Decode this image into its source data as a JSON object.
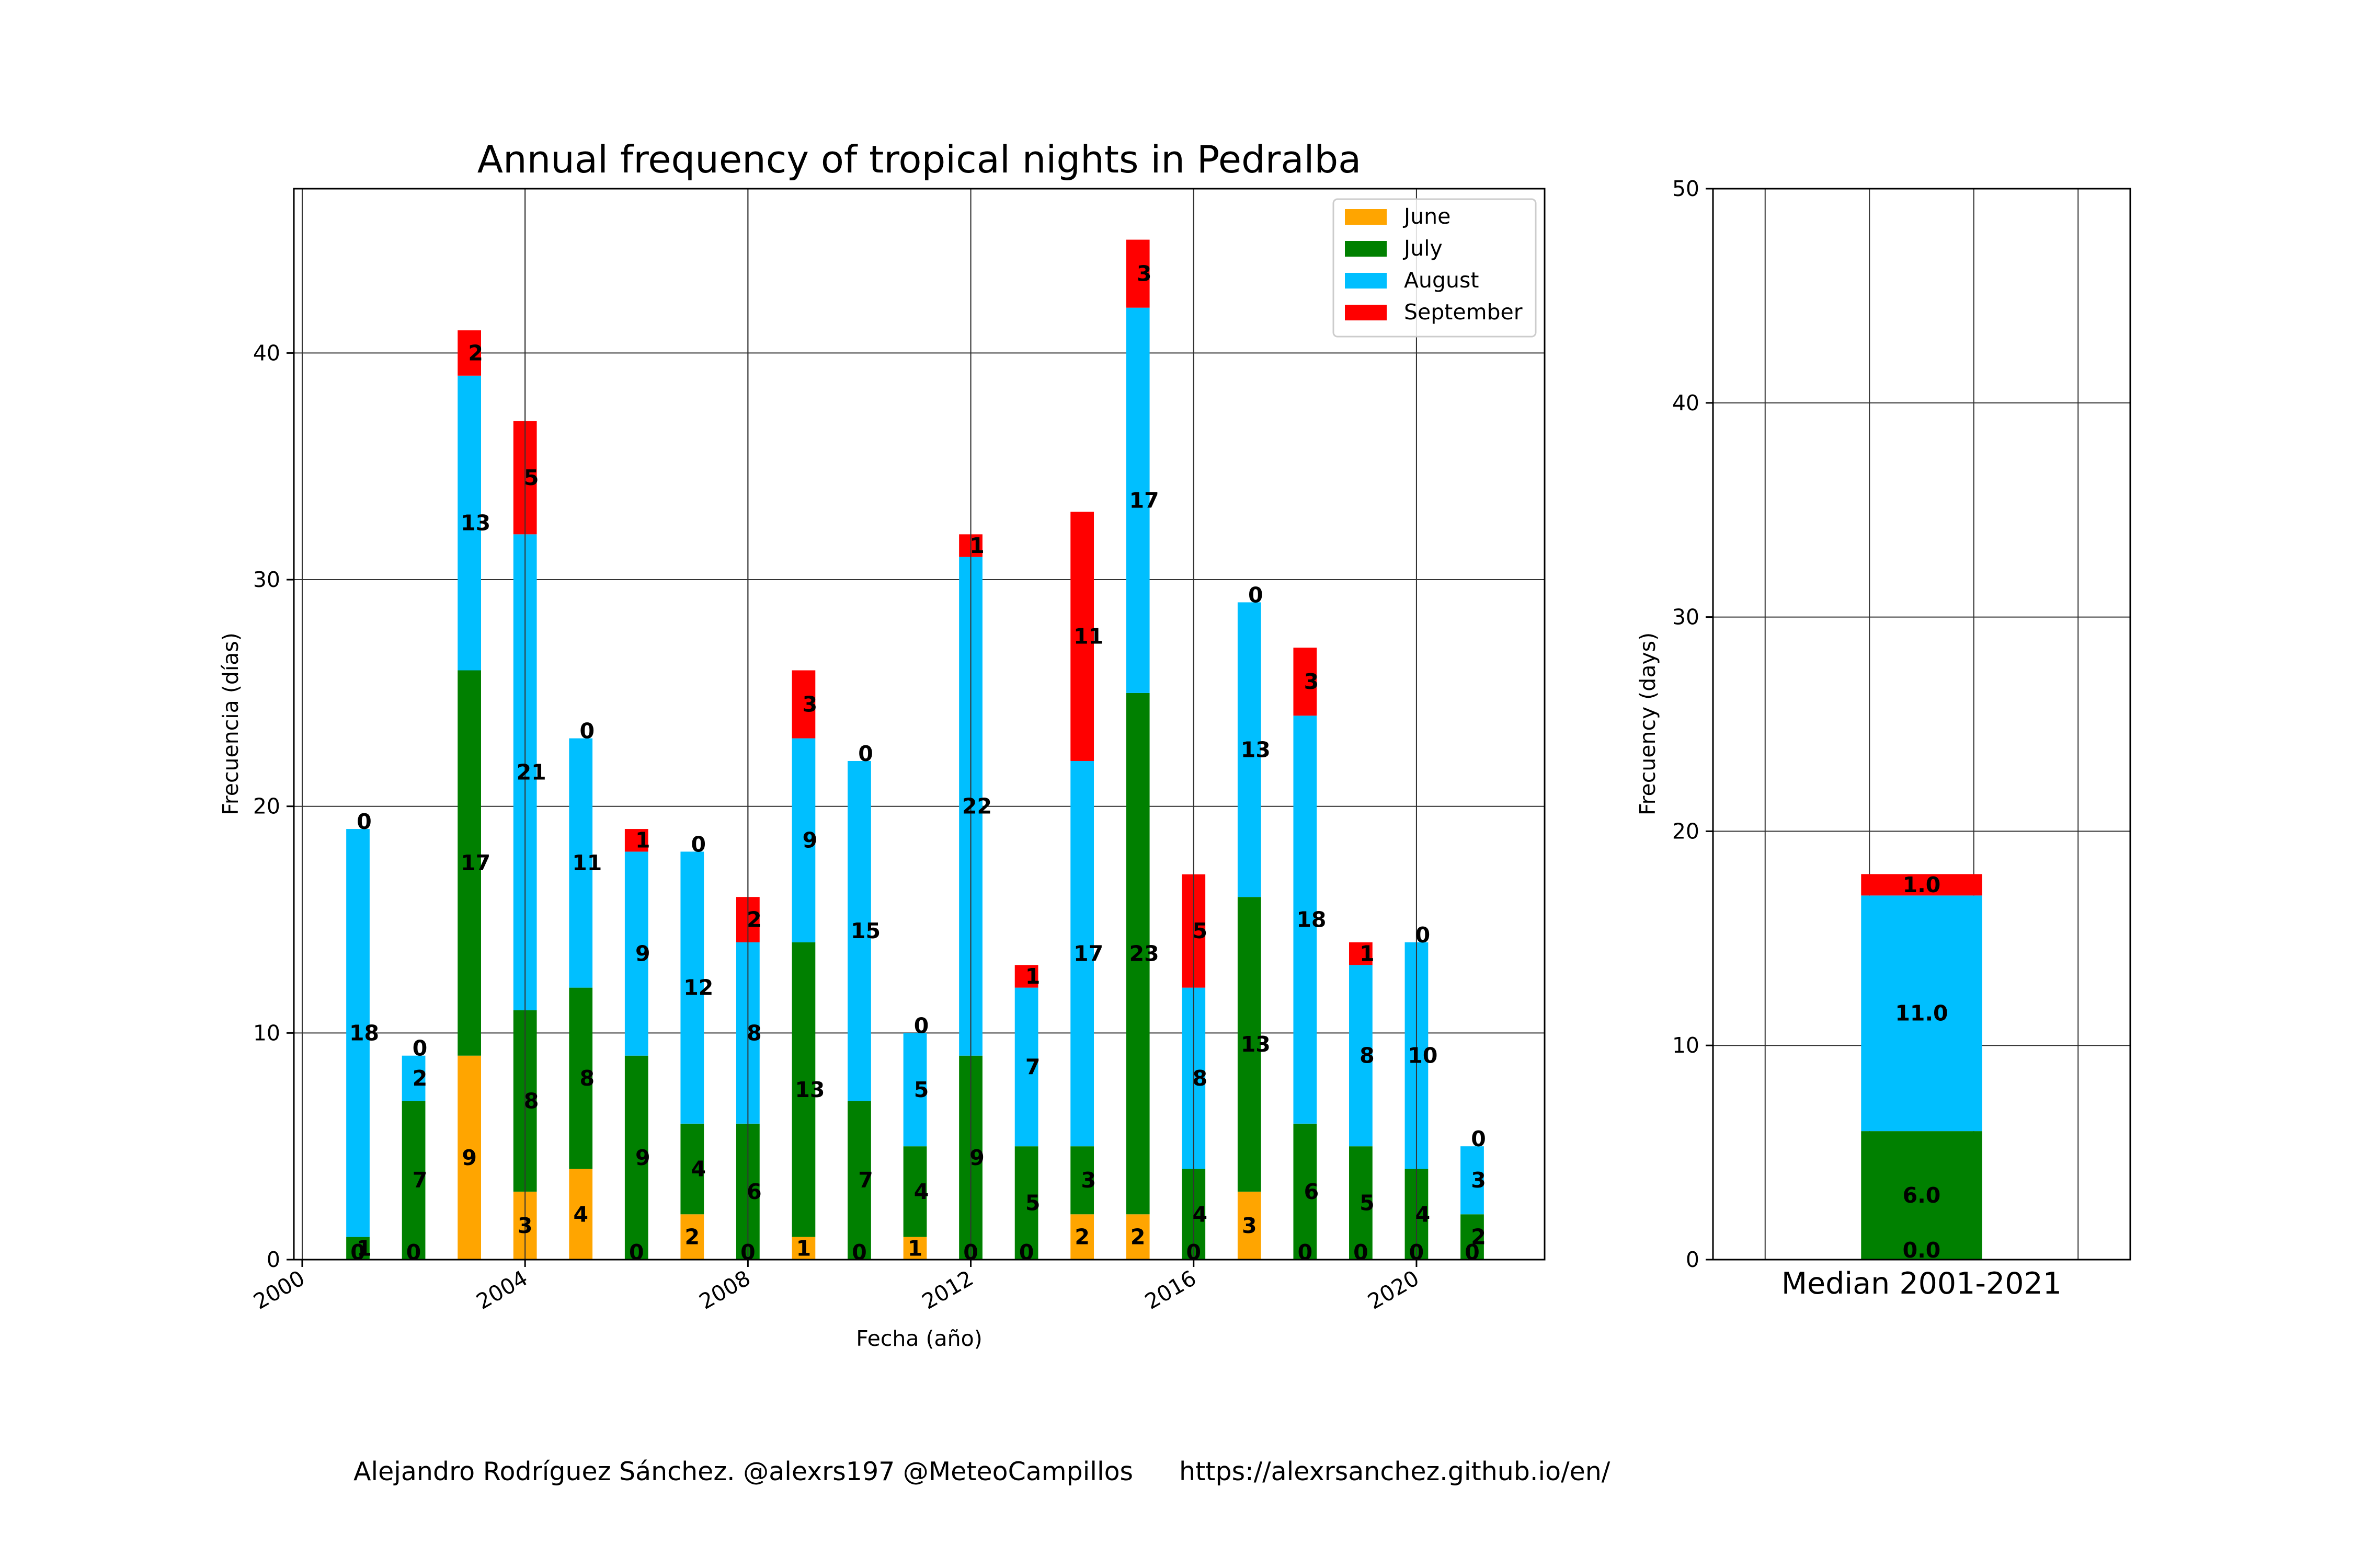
{
  "chart_data": [
    {
      "type": "bar",
      "stacked": true,
      "title": "Annual frequency of tropical nights in Pedralba",
      "xlabel": "Fecha (año)",
      "ylabel": "Frecuencia (días)",
      "x": [
        2001,
        2002,
        2003,
        2004,
        2005,
        2006,
        2007,
        2008,
        2009,
        2010,
        2011,
        2012,
        2013,
        2014,
        2015,
        2016,
        2017,
        2018,
        2019,
        2020,
        2021
      ],
      "x_ticks": [
        "2000",
        "2004",
        "2008",
        "2012",
        "2016",
        "2020"
      ],
      "y_ticks": [
        "0",
        "10",
        "20",
        "30",
        "40"
      ],
      "xlim": [
        1999.85,
        2022.3
      ],
      "ylim": [
        0,
        47.25
      ],
      "grid": true,
      "legend_position": "top-right",
      "series": [
        {
          "name": "June",
          "color": "#FFA500",
          "values": [
            0,
            0,
            9,
            3,
            4,
            0,
            2,
            0,
            1,
            0,
            1,
            0,
            0,
            2,
            2,
            0,
            3,
            0,
            0,
            0,
            0
          ]
        },
        {
          "name": "July",
          "color": "#008000",
          "values": [
            1,
            7,
            17,
            8,
            8,
            9,
            4,
            6,
            13,
            7,
            4,
            9,
            5,
            3,
            23,
            4,
            13,
            6,
            5,
            4,
            2
          ]
        },
        {
          "name": "August",
          "color": "#00BFFF",
          "values": [
            18,
            2,
            13,
            21,
            11,
            9,
            12,
            8,
            9,
            15,
            5,
            22,
            7,
            17,
            17,
            8,
            13,
            18,
            8,
            10,
            3
          ]
        },
        {
          "name": "September",
          "color": "#FF0000",
          "values": [
            0,
            0,
            2,
            5,
            0,
            1,
            0,
            2,
            3,
            0,
            0,
            1,
            1,
            11,
            3,
            5,
            0,
            3,
            1,
            0,
            0
          ]
        }
      ]
    },
    {
      "type": "bar",
      "stacked": true,
      "xlabel": "Median 2001-2021",
      "ylabel": "Frecuency (days)",
      "y_ticks": [
        "0",
        "10",
        "20",
        "30",
        "40",
        "50"
      ],
      "ylim": [
        0,
        50
      ],
      "grid": true,
      "series": [
        {
          "name": "June",
          "color": "#FFA500",
          "values": [
            0.0
          ],
          "label": "0.0"
        },
        {
          "name": "July",
          "color": "#008000",
          "values": [
            6.0
          ],
          "label": "6.0"
        },
        {
          "name": "August",
          "color": "#00BFFF",
          "values": [
            11.0
          ],
          "label": "11.0"
        },
        {
          "name": "September",
          "color": "#FF0000",
          "values": [
            1.0
          ],
          "label": "1.0"
        }
      ]
    }
  ],
  "footer": {
    "credit": "Alejandro Rodríguez Sánchez. @alexrs197 @MeteoCampillos",
    "url": "https://alexrsanchez.github.io/en/"
  }
}
